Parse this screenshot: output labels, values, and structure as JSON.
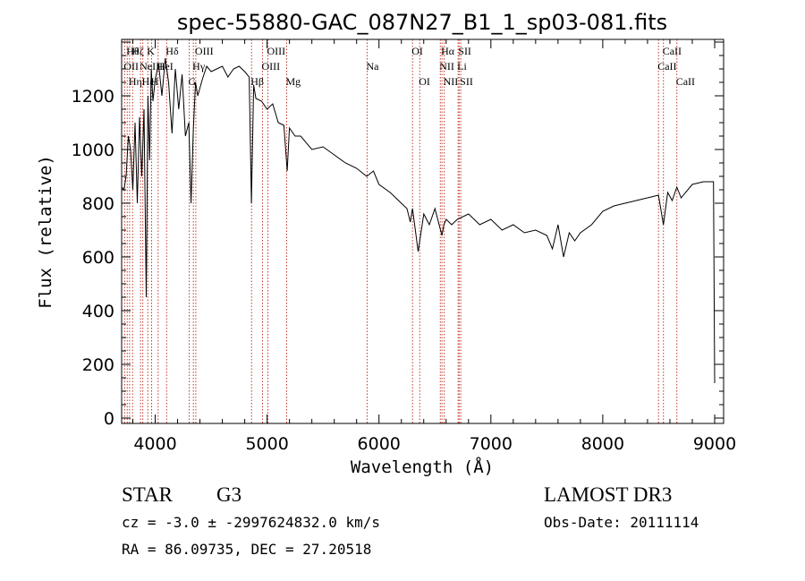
{
  "chart_data": {
    "type": "line",
    "title": "spec-55880-GAC_087N27_B1_1_sp03-081.fits",
    "xlabel": "Wavelength (Å)",
    "ylabel": "Flux (relative)",
    "xlim": [
      3700,
      9080
    ],
    "ylim": [
      -20,
      1410
    ],
    "xticks": [
      4000,
      5000,
      6000,
      7000,
      8000,
      9000
    ],
    "yticks": [
      0,
      200,
      400,
      600,
      800,
      1000,
      1200
    ],
    "grid": false,
    "series": [
      {
        "x": [
          3700,
          3720,
          3740,
          3760,
          3780,
          3800,
          3820,
          3840,
          3860,
          3880,
          3900,
          3920,
          3935,
          3950,
          3965,
          3980,
          4000,
          4030,
          4060,
          4090,
          4120,
          4150,
          4180,
          4210,
          4240,
          4270,
          4300,
          4320,
          4340,
          4360,
          4380,
          4420,
          4460,
          4500,
          4550,
          4600,
          4650,
          4700,
          4750,
          4800,
          4840,
          4860,
          4880,
          4900,
          4950,
          5000,
          5050,
          5100,
          5150,
          5180,
          5200,
          5250,
          5300,
          5400,
          5500,
          5600,
          5700,
          5800,
          5890,
          5950,
          6000,
          6100,
          6200,
          6250,
          6280,
          6300,
          6350,
          6400,
          6450,
          6500,
          6550,
          6563,
          6580,
          6600,
          6650,
          6700,
          6800,
          6900,
          7000,
          7100,
          7200,
          7300,
          7400,
          7500,
          7550,
          7600,
          7650,
          7700,
          7750,
          7800,
          7900,
          8000,
          8100,
          8200,
          8300,
          8400,
          8498,
          8542,
          8580,
          8620,
          8662,
          8700,
          8800,
          8900,
          8990,
          9000
        ],
        "y": [
          860,
          850,
          900,
          1050,
          1000,
          850,
          1100,
          800,
          1120,
          900,
          1150,
          450,
          1200,
          960,
          1300,
          1180,
          1260,
          1320,
          1200,
          1340,
          1250,
          1060,
          1300,
          1150,
          1280,
          1050,
          1100,
          800,
          1070,
          1250,
          1200,
          1260,
          1310,
          1290,
          1300,
          1310,
          1270,
          1300,
          1310,
          1290,
          1270,
          800,
          1240,
          1190,
          1180,
          1150,
          1170,
          1100,
          1090,
          920,
          1080,
          1050,
          1050,
          1000,
          1010,
          980,
          950,
          930,
          900,
          920,
          870,
          840,
          800,
          780,
          730,
          780,
          620,
          760,
          720,
          780,
          700,
          680,
          720,
          740,
          720,
          740,
          760,
          720,
          740,
          700,
          720,
          690,
          700,
          680,
          630,
          720,
          600,
          690,
          660,
          690,
          720,
          770,
          790,
          800,
          810,
          820,
          830,
          720,
          840,
          810,
          860,
          820,
          870,
          880,
          880,
          130
        ]
      }
    ],
    "lines": [
      {
        "x": 3727,
        "label": "OII",
        "row": 2
      },
      {
        "x": 3750,
        "label": "Hθ",
        "row": 1
      },
      {
        "x": 3771,
        "label": "Hη",
        "row": 3
      },
      {
        "x": 3798,
        "label": "Hζ",
        "row": 1
      },
      {
        "x": 3869,
        "label": "NeIII",
        "row": 2
      },
      {
        "x": 3889,
        "label": "Hε",
        "row": 3
      },
      {
        "x": 3934,
        "label": "K",
        "row": 1
      },
      {
        "x": 3968,
        "label": "H",
        "row": 3
      },
      {
        "x": 4026,
        "label": "HeI",
        "row": 2
      },
      {
        "x": 4102,
        "label": "Hδ",
        "row": 1
      },
      {
        "x": 4304,
        "label": "G",
        "row": 3
      },
      {
        "x": 4341,
        "label": "Hγ",
        "row": 2
      },
      {
        "x": 4363,
        "label": "OIII",
        "row": 1
      },
      {
        "x": 4861,
        "label": "Hβ",
        "row": 3
      },
      {
        "x": 4959,
        "label": "OIII",
        "row": 2
      },
      {
        "x": 5007,
        "label": "OIII",
        "row": 1
      },
      {
        "x": 5175,
        "label": "Mg",
        "row": 3
      },
      {
        "x": 5894,
        "label": "Na",
        "row": 2
      },
      {
        "x": 6300,
        "label": "OI",
        "row": 1
      },
      {
        "x": 6364,
        "label": "OI",
        "row": 3
      },
      {
        "x": 6548,
        "label": "NII",
        "row": 2
      },
      {
        "x": 6563,
        "label": "Hα",
        "row": 1
      },
      {
        "x": 6583,
        "label": "NII",
        "row": 3
      },
      {
        "x": 6707,
        "label": "Li",
        "row": 2
      },
      {
        "x": 6716,
        "label": "SII",
        "row": 1
      },
      {
        "x": 6731,
        "label": "SII",
        "row": 3
      },
      {
        "x": 8498,
        "label": "CaII",
        "row": 2
      },
      {
        "x": 8542,
        "label": "CaII",
        "row": 1
      },
      {
        "x": 8662,
        "label": "CaII",
        "row": 3
      }
    ]
  },
  "info": {
    "object_class": "STAR",
    "subclass": "G3",
    "survey": "LAMOST DR3",
    "cz": "cz = -3.0 ± -2997624832.0 km/s",
    "obs_date": "Obs-Date: 20111114",
    "radec": "RA =  86.09735, DEC =  27.20518"
  },
  "colors": {
    "spectrum": "#000000",
    "line_markers": "#c0392b",
    "axes": "#000000"
  }
}
